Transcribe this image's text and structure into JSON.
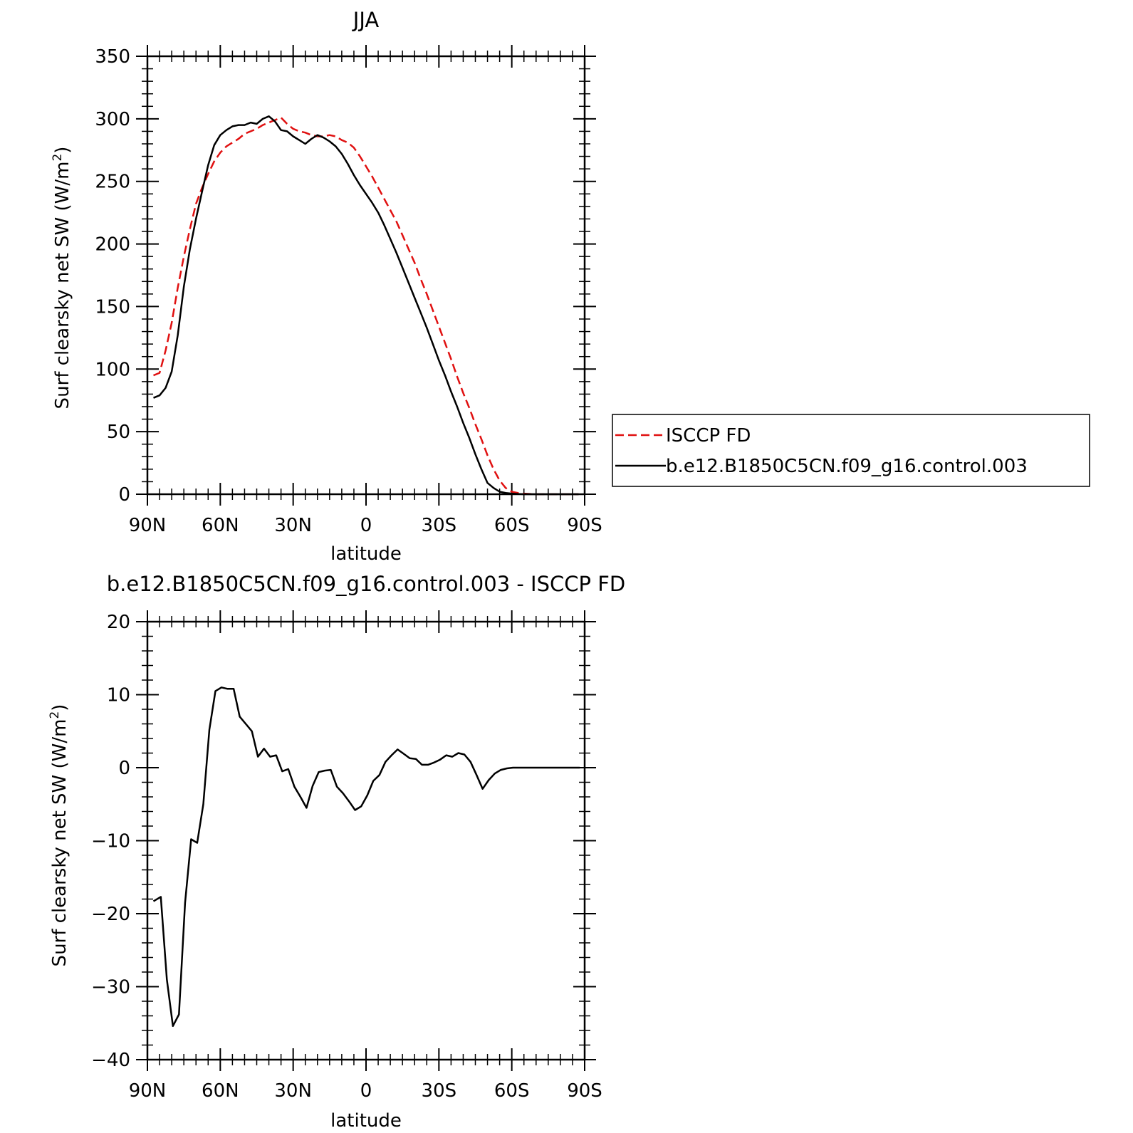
{
  "chart_data": [
    {
      "type": "line",
      "title": "JJA",
      "xlabel": "latitude",
      "ylabel": "Surf clearsky net SW (W/m²)",
      "ylabel_base": "Surf clearsky net SW (W/m",
      "ylabel_sup": "2",
      "ylabel_close": ")",
      "xlim": [
        90,
        -90
      ],
      "ylim": [
        0,
        350
      ],
      "x_ticks": [
        90,
        60,
        30,
        0,
        -30,
        -60,
        -90
      ],
      "x_tick_labels": [
        "90N",
        "60N",
        "30N",
        "0",
        "30S",
        "60S",
        "90S"
      ],
      "y_ticks": [
        0,
        50,
        100,
        150,
        200,
        250,
        300,
        350
      ],
      "y_tick_labels": [
        "0",
        "50",
        "100",
        "150",
        "200",
        "250",
        "300",
        "350"
      ],
      "legend": {
        "placement": "right",
        "entries": [
          "ISCCP FD",
          "b.e12.B1850C5CN.f09_g16.control.003"
        ]
      },
      "series": [
        {
          "name": "ISCCP FD",
          "color": "#e01010",
          "dash": "dashed",
          "x": [
            87.5,
            85,
            82.5,
            80,
            77.5,
            75,
            72.5,
            70,
            67.5,
            65,
            62.5,
            60,
            57.5,
            55,
            52.5,
            50,
            47.5,
            45,
            42.5,
            40,
            37.5,
            35,
            32.5,
            30,
            27.5,
            25,
            22.5,
            20,
            17.5,
            15,
            12.5,
            10,
            7.5,
            5,
            2.5,
            0,
            -2.5,
            -5,
            -7.5,
            -10,
            -12.5,
            -15,
            -17.5,
            -20,
            -22.5,
            -25,
            -27.5,
            -30,
            -32.5,
            -35,
            -37.5,
            -40,
            -42.5,
            -45,
            -47.5,
            -50,
            -52.5,
            -55,
            -57.5,
            -60,
            -62.5,
            -65,
            -67.5,
            -70,
            -72.5,
            -75,
            -77.5,
            -80,
            -82.5,
            -85,
            -87.5
          ],
          "values": [
            95,
            97,
            115,
            137,
            165,
            190,
            212,
            232,
            245,
            256,
            266,
            273,
            278,
            281,
            284,
            288,
            290,
            292,
            295,
            297,
            299,
            301,
            296,
            292,
            290,
            289,
            287,
            286,
            286,
            287,
            286,
            283,
            281,
            277,
            270,
            262,
            254,
            245,
            236,
            227,
            218,
            207,
            196,
            185,
            172,
            160,
            147,
            134,
            121,
            108,
            94,
            81,
            69,
            56,
            44,
            31,
            20,
            11,
            5,
            2,
            1,
            0.5,
            0.2,
            0,
            0,
            0,
            0,
            0,
            0,
            0,
            0
          ]
        },
        {
          "name": "b.e12.B1850C5CN.f09_g16.control.003",
          "color": "#000000",
          "dash": "solid",
          "x": [
            87.5,
            85,
            82.5,
            80,
            77.5,
            75,
            72.5,
            70,
            67.5,
            65,
            62.5,
            60,
            57.5,
            55,
            52.5,
            50,
            47.5,
            45,
            42.5,
            40,
            37.5,
            35,
            32.5,
            30,
            27.5,
            25,
            22.5,
            20,
            17.5,
            15,
            12.5,
            10,
            7.5,
            5,
            2.5,
            0,
            -2.5,
            -5,
            -7.5,
            -10,
            -12.5,
            -15,
            -17.5,
            -20,
            -22.5,
            -25,
            -27.5,
            -30,
            -32.5,
            -35,
            -37.5,
            -40,
            -42.5,
            -45,
            -47.5,
            -50,
            -52.5,
            -55,
            -57.5,
            -60,
            -62.5,
            -65,
            -67.5,
            -70,
            -72.5,
            -75,
            -77.5,
            -80,
            -82.5,
            -85,
            -87.5
          ],
          "values": [
            77,
            79,
            85,
            98,
            127,
            166,
            196,
            220,
            242,
            263,
            279,
            287,
            291,
            294,
            295,
            295,
            297,
            296,
            300,
            302,
            298,
            291,
            290,
            286,
            283,
            280,
            284,
            287,
            285,
            282,
            278,
            272,
            264,
            255,
            247,
            240,
            233,
            225,
            215,
            204,
            193,
            181,
            169,
            157,
            145,
            133,
            120,
            107,
            95,
            82,
            70,
            57,
            45,
            32,
            20,
            9,
            5,
            2,
            1,
            0.5,
            0.2,
            0,
            0,
            0,
            0,
            0,
            0,
            0,
            0,
            0,
            0
          ]
        }
      ]
    },
    {
      "type": "line",
      "title": "b.e12.B1850C5CN.f09_g16.control.003 - ISCCP FD",
      "xlabel": "latitude",
      "ylabel": "Surf clearsky net SW (W/m²)",
      "ylabel_base": "Surf clearsky net SW (W/m",
      "ylabel_sup": "2",
      "ylabel_close": ")",
      "xlim": [
        90,
        -90
      ],
      "ylim": [
        -40,
        20
      ],
      "x_ticks": [
        90,
        60,
        30,
        0,
        -30,
        -60,
        -90
      ],
      "x_tick_labels": [
        "90N",
        "60N",
        "30N",
        "0",
        "30S",
        "60S",
        "90S"
      ],
      "y_ticks": [
        -40,
        -30,
        -20,
        -10,
        0,
        10,
        20
      ],
      "y_tick_labels": [
        "−40",
        "−30",
        "−20",
        "−10",
        "0",
        "10",
        "20"
      ],
      "series": [
        {
          "color": "#000000",
          "dash": "solid",
          "x": [
            87.5,
            84.5,
            82,
            79.5,
            77,
            74.5,
            72,
            69.5,
            67,
            64.5,
            62,
            59.5,
            57,
            54.5,
            52,
            49.5,
            47,
            44.5,
            42,
            39.5,
            37,
            34.5,
            32,
            29.5,
            27,
            24.5,
            22,
            19.5,
            17,
            14.5,
            12,
            9.5,
            7,
            4.5,
            2,
            -0.5,
            -3,
            -5.5,
            -8,
            -10.5,
            -13,
            -15.5,
            -18,
            -20.5,
            -23,
            -25.5,
            -28,
            -30.5,
            -33,
            -35.5,
            -38,
            -40.5,
            -43,
            -45.5,
            -48,
            -50.5,
            -53,
            -55.5,
            -58,
            -60.5,
            -63,
            -65.5,
            -68,
            -70.5,
            -73,
            -75.5,
            -78,
            -80.5,
            -83,
            -85.5,
            -88
          ],
          "values": [
            -18.3,
            -17.7,
            -29,
            -35.4,
            -33.8,
            -18.5,
            -9.8,
            -10.3,
            -5,
            5.2,
            10.5,
            11,
            10.8,
            10.8,
            7,
            6,
            5,
            1.5,
            2.6,
            1.5,
            1.7,
            -0.5,
            -0.2,
            -2.6,
            -4,
            -5.5,
            -2.5,
            -0.6,
            -0.4,
            -0.3,
            -2.6,
            -3.5,
            -4.6,
            -5.8,
            -5.3,
            -3.8,
            -1.8,
            -1,
            0.8,
            1.7,
            2.5,
            1.9,
            1.3,
            1.2,
            0.4,
            0.4,
            0.7,
            1.1,
            1.7,
            1.5,
            2,
            1.8,
            0.8,
            -1,
            -2.9,
            -1.7,
            -0.8,
            -0.3,
            -0.1,
            0,
            0,
            0,
            0,
            0,
            0,
            0,
            0,
            0,
            0,
            0,
            0
          ]
        }
      ]
    }
  ]
}
